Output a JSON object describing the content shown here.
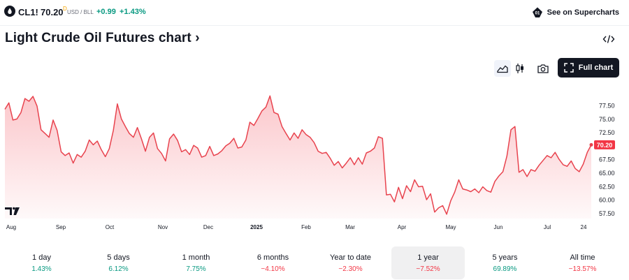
{
  "header": {
    "symbol": "CL1!",
    "price": "70.20",
    "price_superscript": "D",
    "unit": "USD / BLL",
    "change": "+0.99",
    "change_percent": "+1.43%",
    "supercharts_label": "See on Supercharts"
  },
  "title": "Light Crude Oil Futures chart",
  "toolbar": {
    "fullchart_label": "Full chart",
    "icons": [
      "area-chart-icon",
      "candles-icon",
      "camera-icon",
      "fullscreen-icon",
      "embed-code-icon"
    ]
  },
  "colors": {
    "line": "#e8434e",
    "accent_up": "#089981",
    "accent_down": "#f23645",
    "dark": "#131722"
  },
  "chart_data": {
    "type": "area",
    "title": "",
    "xlabel": "",
    "ylabel": "",
    "series": [
      {
        "values": [
          76.8,
          78.0,
          74.8,
          75.0,
          76.2,
          78.8,
          78.3,
          79.2,
          77.4,
          73.0,
          72.3,
          71.6,
          74.8,
          72.9,
          68.9,
          68.2,
          68.7,
          66.8,
          68.4,
          67.9,
          69.0,
          71.1,
          70.2,
          70.9,
          69.3,
          68.0,
          69.5,
          72.9,
          77.8,
          75.0,
          73.6,
          72.3,
          71.6,
          73.4,
          71.3,
          69.0,
          71.6,
          72.4,
          69.5,
          68.6,
          67.2,
          71.3,
          72.2,
          71.0,
          68.9,
          69.3,
          68.4,
          70.1,
          69.6,
          67.9,
          68.2,
          69.9,
          68.2,
          68.5,
          69.1,
          70.0,
          70.5,
          71.4,
          69.6,
          69.8,
          71.1,
          74.4,
          73.8,
          75.1,
          76.5,
          77.2,
          79.3,
          76.2,
          75.9,
          73.6,
          72.3,
          71.1,
          72.4,
          71.4,
          73.0,
          72.1,
          71.6,
          70.6,
          69.0,
          68.6,
          68.8,
          67.7,
          66.4,
          67.1,
          65.9,
          66.8,
          67.8,
          66.5,
          67.8,
          66.6,
          68.7,
          69.0,
          69.6,
          71.7,
          71.4,
          60.9,
          61.0,
          59.6,
          62.3,
          60.2,
          62.6,
          61.5,
          63.7,
          62.4,
          62.5,
          60.0,
          61.1,
          57.7,
          58.5,
          58.9,
          57.3,
          59.8,
          61.4,
          63.7,
          62.0,
          61.8,
          61.5,
          62.0,
          61.3,
          62.4,
          61.7,
          61.4,
          63.4,
          64.4,
          65.2,
          68.1,
          73.0,
          73.6,
          65.1,
          65.6,
          64.3,
          65.6,
          65.3,
          66.4,
          67.3,
          68.2,
          67.8,
          68.8,
          67.5,
          66.5,
          66.2,
          67.2,
          65.8,
          65.2,
          66.6,
          68.8,
          70.2
        ]
      }
    ],
    "x_tick_labels": [
      "Aug",
      "Sep",
      "Oct",
      "Nov",
      "Dec",
      "2025",
      "Feb",
      "Mar",
      "Apr",
      "May",
      "Jun",
      "Jul",
      "24"
    ],
    "y_ticks": [
      57.5,
      60.0,
      62.5,
      65.0,
      67.5,
      72.5,
      75.0,
      77.5
    ],
    "y_tick_labels": [
      "57.50",
      "60.00",
      "62.50",
      "65.00",
      "67.50",
      "72.50",
      "75.00",
      "77.50"
    ],
    "last_value_label": "70.20",
    "ylim": [
      56.5,
      80.5
    ],
    "grid": false
  },
  "periods": [
    {
      "label": "1 day",
      "value": "1.43%",
      "dir": "up",
      "selected": false
    },
    {
      "label": "5 days",
      "value": "6.12%",
      "dir": "up",
      "selected": false
    },
    {
      "label": "1 month",
      "value": "7.75%",
      "dir": "up",
      "selected": false
    },
    {
      "label": "6 months",
      "value": "−4.10%",
      "dir": "down",
      "selected": false
    },
    {
      "label": "Year to date",
      "value": "−2.30%",
      "dir": "down",
      "selected": false
    },
    {
      "label": "1 year",
      "value": "−7.52%",
      "dir": "down",
      "selected": true
    },
    {
      "label": "5 years",
      "value": "69.89%",
      "dir": "up",
      "selected": false
    },
    {
      "label": "All time",
      "value": "−13.57%",
      "dir": "down",
      "selected": false
    }
  ]
}
